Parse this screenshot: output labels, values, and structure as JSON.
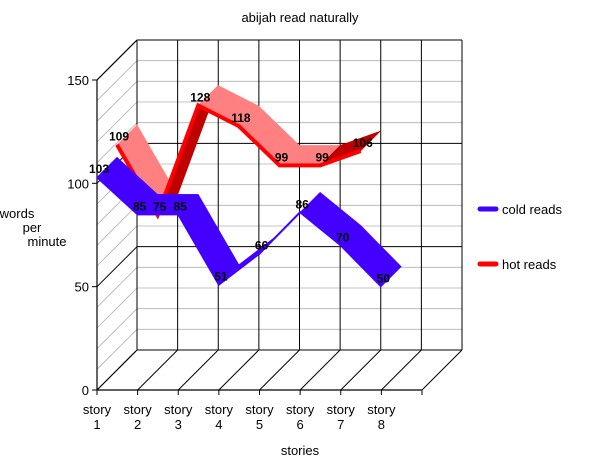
{
  "chart_data": {
    "type": "line",
    "title": "abijah read naturally",
    "xlabel": "stories",
    "ylabel": "words per minute",
    "ylabel_lines": [
      "words",
      "per",
      "minute"
    ],
    "categories": [
      [
        "story",
        "1"
      ],
      [
        "story",
        "2"
      ],
      [
        "story",
        "3"
      ],
      [
        "story",
        "4"
      ],
      [
        "story",
        "5"
      ],
      [
        "story",
        "6"
      ],
      [
        "story",
        "7"
      ],
      [
        "story",
        "8"
      ]
    ],
    "y_ticks": [
      "0",
      "50",
      "100",
      "150"
    ],
    "ylim": [
      0,
      150
    ],
    "grid": true,
    "legend_position": "right",
    "style": "3d-ribbon",
    "series": [
      {
        "name": "cold reads",
        "values": [
          103,
          85,
          85,
          51,
          66,
          86,
          70,
          50
        ],
        "color": "#4400ff"
      },
      {
        "name": "hot reads",
        "values": [
          109,
          75,
          128,
          118,
          99,
          99,
          106,
          null
        ],
        "color": "#ff0000",
        "top_color": "#ff8080",
        "side_color": "#c00000"
      }
    ]
  }
}
